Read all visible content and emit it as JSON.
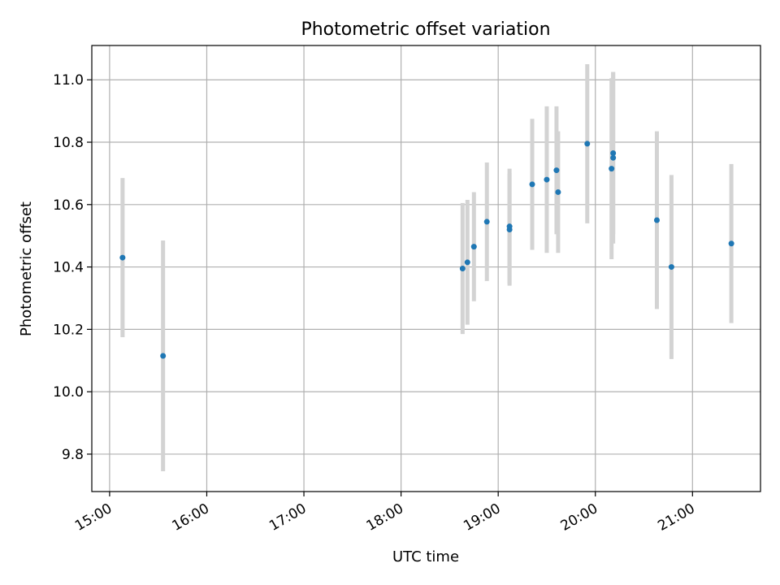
{
  "chart_data": {
    "type": "scatter",
    "title": "Photometric offset variation",
    "xlabel": "UTC time",
    "ylabel": "Photometric offset",
    "grid": true,
    "xlim": [
      "14:49",
      "21:42"
    ],
    "ylim": [
      9.68,
      11.11
    ],
    "x_ticks": [
      "15:00",
      "16:00",
      "17:00",
      "18:00",
      "19:00",
      "20:00",
      "21:00"
    ],
    "y_ticks": [
      "9.8",
      "10.0",
      "10.2",
      "10.4",
      "10.6",
      "10.8",
      "11.0"
    ],
    "colors": {
      "points": "#1f77b4",
      "error_bars": "#d3d3d3",
      "grid": "#b0b0b0"
    },
    "points": [
      {
        "time": "15:08",
        "y": 10.43,
        "yerr": 0.255
      },
      {
        "time": "15:33",
        "y": 10.115,
        "yerr": 0.37
      },
      {
        "time": "18:38",
        "y": 10.395,
        "yerr": 0.21
      },
      {
        "time": "18:41",
        "y": 10.415,
        "yerr": 0.2
      },
      {
        "time": "18:45",
        "y": 10.465,
        "yerr": 0.175
      },
      {
        "time": "18:53",
        "y": 10.545,
        "yerr": 0.19
      },
      {
        "time": "19:07",
        "y": 10.53,
        "yerr": 0.185
      },
      {
        "time": "19:07",
        "y": 10.52,
        "yerr": 0.18
      },
      {
        "time": "19:21",
        "y": 10.665,
        "yerr": 0.21
      },
      {
        "time": "19:30",
        "y": 10.68,
        "yerr": 0.235
      },
      {
        "time": "19:36",
        "y": 10.71,
        "yerr": 0.205
      },
      {
        "time": "19:37",
        "y": 10.64,
        "yerr": 0.195
      },
      {
        "time": "19:55",
        "y": 10.795,
        "yerr": 0.255
      },
      {
        "time": "20:10",
        "y": 10.715,
        "yerr": 0.29
      },
      {
        "time": "20:11",
        "y": 10.75,
        "yerr": 0.275
      },
      {
        "time": "20:11",
        "y": 10.765,
        "yerr": 0.26
      },
      {
        "time": "20:38",
        "y": 10.55,
        "yerr": 0.285
      },
      {
        "time": "20:47",
        "y": 10.4,
        "yerr": 0.295
      },
      {
        "time": "21:24",
        "y": 10.475,
        "yerr": 0.255
      }
    ]
  }
}
